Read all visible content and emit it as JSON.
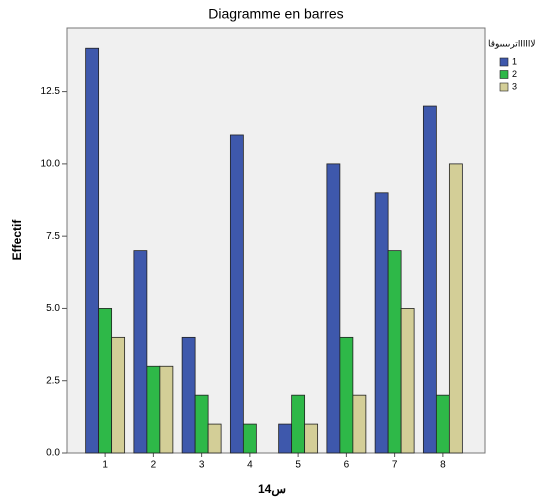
{
  "chart_data": {
    "type": "bar",
    "title": "Diagramme en barres",
    "x_label": "س14",
    "y_label": "Effectif",
    "legend_title": "ترىىىىوقاIIIIIلا",
    "categories": [
      "1",
      "2",
      "3",
      "4",
      "5",
      "6",
      "7",
      "8"
    ],
    "series": [
      {
        "name": "1",
        "color": "#3e58ac",
        "values": [
          14,
          7,
          4,
          11,
          1,
          10,
          9,
          12
        ]
      },
      {
        "name": "2",
        "color": "#2eb848",
        "values": [
          5,
          3,
          2,
          1,
          2,
          4,
          7,
          2
        ]
      },
      {
        "name": "3",
        "color": "#d3ce97",
        "values": [
          4,
          3,
          1,
          0,
          1,
          2,
          5,
          10
        ]
      }
    ],
    "ylim": [
      0,
      14.7
    ],
    "yticks": [
      {
        "value": 0,
        "label": "0.0"
      },
      {
        "value": 2.5,
        "label": "2.5"
      },
      {
        "value": 5,
        "label": "5.0"
      },
      {
        "value": 7.5,
        "label": "7.5"
      },
      {
        "value": 10,
        "label": "10.0"
      },
      {
        "value": 12.5,
        "label": "12.5"
      }
    ],
    "grid": false,
    "legend_position": "right"
  }
}
